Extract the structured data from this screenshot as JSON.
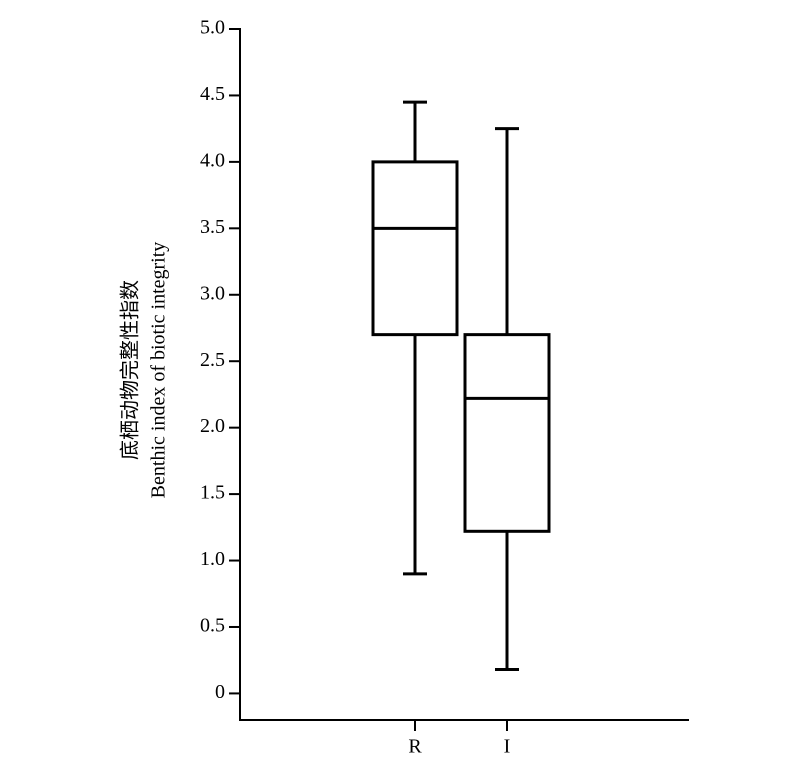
{
  "chart_data": {
    "type": "box",
    "ylabel": [
      "底栖动物完整性指数",
      "Benthic index of biotic integrity"
    ],
    "categories": [
      "R",
      "I"
    ],
    "boxes": [
      {
        "min": 0.9,
        "q1": 2.7,
        "median": 3.5,
        "q3": 4.0,
        "max": 4.45
      },
      {
        "min": 0.18,
        "q1": 1.22,
        "median": 2.22,
        "q3": 2.7,
        "max": 4.25
      }
    ],
    "color": "#000000",
    "ylim": [
      -0.2,
      5.0
    ],
    "yticks": [
      0,
      0.5,
      {
        "value": 1,
        "label": "1.0"
      },
      1.5,
      {
        "value": 2,
        "label": "2.0"
      },
      2.5,
      {
        "value": 3,
        "label": "3.0"
      },
      3.5,
      {
        "value": 4,
        "label": "4.0"
      },
      4.5,
      {
        "value": 5,
        "label": "5.0"
      }
    ]
  }
}
